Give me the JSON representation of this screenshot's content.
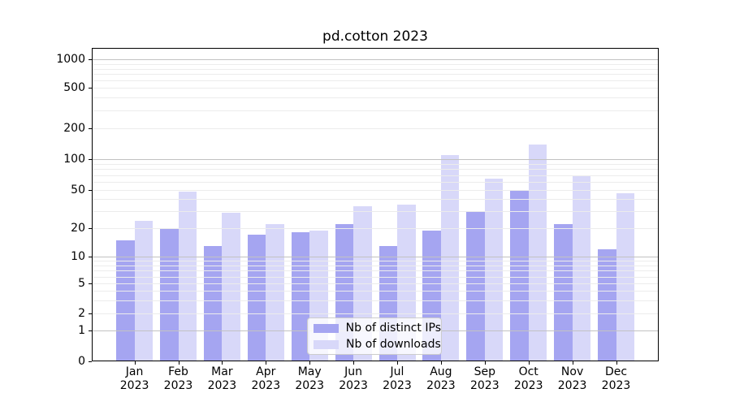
{
  "chart_data": {
    "type": "bar",
    "title": "pd.cotton 2023",
    "categories": [
      "Jan",
      "Feb",
      "Mar",
      "Apr",
      "May",
      "Jun",
      "Jul",
      "Aug",
      "Sep",
      "Oct",
      "Nov",
      "Dec"
    ],
    "year": "2023",
    "series": [
      {
        "name": "Nb of distinct IPs",
        "color": "#a5a5f1",
        "values": [
          15,
          20,
          13,
          17,
          18,
          22,
          13,
          19,
          30,
          49,
          22,
          12
        ]
      },
      {
        "name": "Nb of downloads",
        "color": "#d8d8f9",
        "values": [
          24,
          48,
          29,
          22,
          19,
          34,
          35,
          110,
          65,
          140,
          70,
          46
        ]
      }
    ],
    "y_ticks": [
      0,
      1,
      2,
      5,
      10,
      20,
      50,
      100,
      200,
      500,
      1000
    ],
    "y_scale": "asinh",
    "ylim": [
      0,
      1300
    ],
    "xlabel": "",
    "ylabel": "",
    "grid": {
      "major": [
        1,
        10,
        100,
        1000
      ],
      "minor": [
        2,
        3,
        4,
        5,
        6,
        7,
        8,
        9,
        20,
        30,
        40,
        50,
        60,
        70,
        80,
        90,
        200,
        300,
        400,
        500,
        600,
        700,
        800,
        900
      ]
    },
    "legend_position": "lower center",
    "colors": {
      "major_grid": "#c2c2c2",
      "minor_grid": "#ececec",
      "spine": "#000000",
      "background": "#ffffff"
    }
  }
}
